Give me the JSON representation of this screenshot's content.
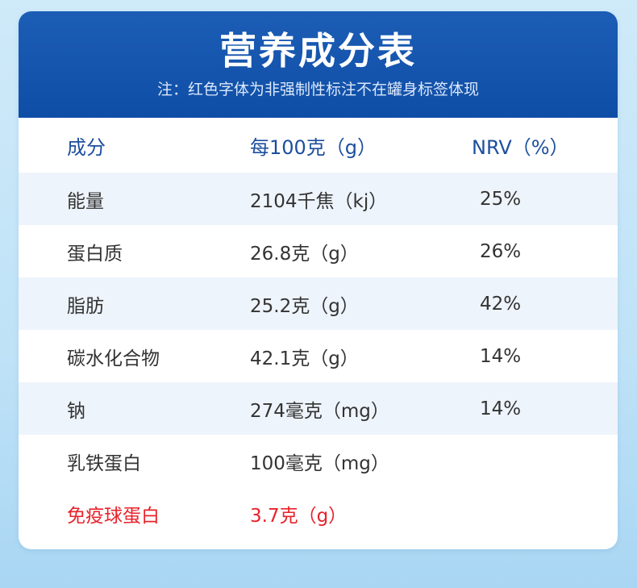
{
  "header": {
    "title": "营养成分表",
    "note": "注：红色字体为非强制性标注不在罐身标签体现"
  },
  "table": {
    "columns": [
      "成分",
      "每100克（g）",
      "NRV（%）"
    ],
    "rows": [
      {
        "name": "能量",
        "amount": "2104千焦（kj）",
        "nrv": "25%"
      },
      {
        "name": "蛋白质",
        "amount": "26.8克（g）",
        "nrv": "26%"
      },
      {
        "name": "脂肪",
        "amount": "25.2克（g）",
        "nrv": "42%"
      },
      {
        "name": "碳水化合物",
        "amount": "42.1克（g）",
        "nrv": "14%"
      },
      {
        "name": "钠",
        "amount": "274毫克（mg）",
        "nrv": "14%"
      },
      {
        "name": "乳铁蛋白",
        "amount": "100毫克（mg）",
        "nrv": ""
      },
      {
        "name": "免疫球蛋白",
        "amount": "3.7克（g）",
        "nrv": ""
      }
    ]
  },
  "colors": {
    "header_bg": "#1258ae",
    "header_text": "#1d4f9e",
    "highlight_red": "#e8222a",
    "stripe": "#eef4fb"
  }
}
